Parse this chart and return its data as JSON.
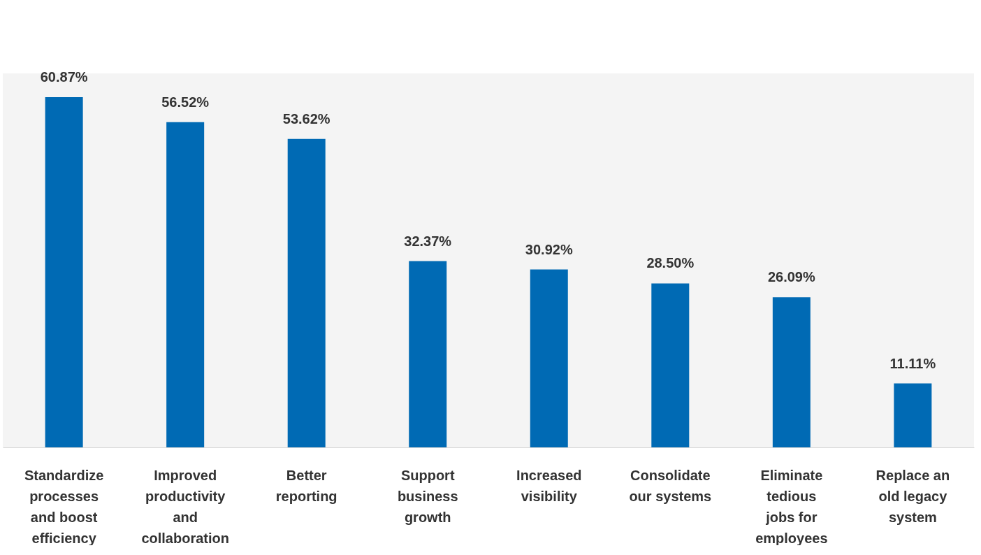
{
  "chart_data": {
    "type": "bar",
    "categories": [
      "Standardize processes and boost efficiency",
      "Improved productivity and collaboration",
      "Better reporting",
      "Support business growth",
      "Increased visibility",
      "Consolidate our systems",
      "Eliminate tedious jobs for employees",
      "Replace an old legacy system"
    ],
    "values": [
      60.87,
      56.52,
      53.62,
      32.37,
      30.92,
      28.5,
      26.09,
      11.11
    ],
    "value_labels": [
      "60.87%",
      "56.52%",
      "53.62%",
      "32.37%",
      "30.92%",
      "28.50%",
      "26.09%",
      "11.11%"
    ],
    "color": "#006ab4",
    "grid": false,
    "tick_labels": "x"
  }
}
